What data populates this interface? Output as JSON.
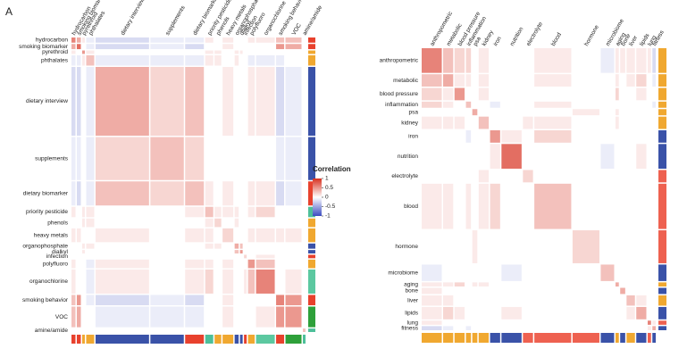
{
  "panel_label": "A",
  "color_scale": {
    "title": "Correlation",
    "lim": [
      -1,
      1
    ],
    "ticks": [
      1,
      0.5,
      0,
      -0.5,
      -1
    ],
    "low": "#3b4cc0",
    "mid": "#ffffff",
    "high": "#d7301f"
  },
  "chart_data": [
    {
      "type": "heatmap",
      "groups": [
        "hydrocarbon",
        "smoking biomarker",
        "pyrethroid",
        "phthalates",
        "dietary interview",
        "supplements",
        "dietary biomarker",
        "priority pesticide",
        "phenols",
        "heavy metals",
        "organophosphate",
        "dialkyl",
        "infection",
        "polyfluoro",
        "organochlorine",
        "smoking behavior",
        "VOC",
        "amine/amide"
      ],
      "sizes": [
        3,
        3,
        2,
        6,
        40,
        25,
        14,
        6,
        5,
        8,
        3,
        2,
        2,
        5,
        14,
        6,
        12,
        2
      ],
      "group_colors": [
        "#e8412d",
        "#e8412d",
        "#f0a830",
        "#f0a830",
        "#3a52a8",
        "#3a52a8",
        "#e8412d",
        "#4dbf9a",
        "#f0a830",
        "#f0a830",
        "#3a52a8",
        "#3a52a8",
        "#e8412d",
        "#f0a830",
        "#5cc8a0",
        "#e8412d",
        "#2ea03a",
        "#4dbf9a"
      ],
      "matrix": [
        [
          0.6,
          0.4,
          0.1,
          -0.1,
          -0.2,
          -0.1,
          -0.1,
          0.1,
          0,
          0.1,
          0,
          0,
          0,
          0.1,
          0.1,
          0.3,
          0.3,
          0
        ],
        [
          0.4,
          0.7,
          0,
          -0.1,
          -0.2,
          -0.1,
          -0.2,
          0,
          0,
          0.1,
          0,
          0,
          0,
          0,
          0,
          0.5,
          0.4,
          0
        ],
        [
          0.1,
          0,
          0.5,
          0.1,
          0,
          0,
          0,
          0.1,
          0.1,
          0,
          0.1,
          0.1,
          0,
          0,
          0,
          0,
          0,
          0
        ],
        [
          -0.1,
          -0.1,
          0.1,
          0.3,
          -0.1,
          -0.1,
          -0.1,
          0.1,
          0.1,
          0,
          0.1,
          0,
          0,
          -0.1,
          -0.1,
          -0.1,
          0,
          0
        ],
        [
          -0.2,
          -0.2,
          0,
          -0.1,
          0.4,
          0.2,
          0.3,
          0,
          0,
          0.1,
          0,
          0,
          0,
          0.1,
          0.1,
          -0.2,
          -0.1,
          0
        ],
        [
          -0.1,
          -0.1,
          0,
          -0.1,
          0.2,
          0.3,
          0.2,
          0,
          0,
          0,
          0,
          0,
          0,
          0,
          0,
          -0.1,
          -0.1,
          0
        ],
        [
          -0.1,
          -0.2,
          0,
          -0.1,
          0.3,
          0.2,
          0.3,
          0.1,
          0,
          0.1,
          0,
          0,
          0,
          0.1,
          0.1,
          -0.2,
          -0.1,
          0
        ],
        [
          0.1,
          0,
          0.1,
          0.1,
          0,
          0,
          0.1,
          0.3,
          0.1,
          0.1,
          0.1,
          0,
          0,
          0.1,
          0.2,
          0,
          0,
          0
        ],
        [
          0,
          0,
          0.1,
          0.1,
          0,
          0,
          0,
          0.1,
          0.2,
          0,
          0.1,
          0,
          0,
          0,
          0,
          0,
          0,
          0
        ],
        [
          0.1,
          0.1,
          0,
          0,
          0.1,
          0,
          0.1,
          0.1,
          0,
          0.2,
          0,
          0,
          0,
          0.1,
          0.1,
          0.1,
          0.1,
          0
        ],
        [
          0,
          0,
          0.1,
          0.1,
          0,
          0,
          0,
          0.1,
          0.1,
          0,
          0.4,
          0.3,
          0,
          0,
          0,
          0,
          0,
          0
        ],
        [
          0,
          0,
          0.1,
          0,
          0,
          0,
          0,
          0,
          0,
          0,
          0.3,
          0.5,
          0,
          0,
          0,
          0,
          0,
          0
        ],
        [
          0,
          0,
          0,
          0,
          0,
          0,
          0,
          0,
          0,
          0,
          0,
          0,
          0.2,
          0,
          0.1,
          0,
          0,
          0
        ],
        [
          0.1,
          0,
          0,
          -0.1,
          0.1,
          0,
          0.1,
          0.1,
          0,
          0.1,
          0,
          0,
          0,
          0.5,
          0.3,
          0,
          0,
          0
        ],
        [
          0.1,
          0,
          0,
          -0.1,
          0.1,
          0,
          0.1,
          0.2,
          0,
          0.1,
          0,
          0,
          0.1,
          0.3,
          0.6,
          0,
          0.1,
          0
        ],
        [
          0.3,
          0.5,
          0,
          -0.1,
          -0.2,
          -0.1,
          -0.2,
          0,
          0,
          0.1,
          0,
          0,
          0,
          0,
          0,
          0.6,
          0.5,
          0
        ],
        [
          0.3,
          0.4,
          0,
          0,
          -0.1,
          -0.1,
          -0.1,
          0,
          0,
          0.1,
          0,
          0,
          0,
          0,
          0.1,
          0.5,
          0.5,
          0
        ],
        [
          0,
          0,
          0,
          0,
          0,
          0,
          0,
          0,
          0,
          0,
          0,
          0,
          0,
          0,
          0,
          0,
          0,
          0.3
        ]
      ]
    },
    {
      "type": "heatmap",
      "groups": [
        "anthropometric",
        "metabolic",
        "blood pressure",
        "inflammation",
        "psa",
        "kidney",
        "iron",
        "nutrition",
        "electrolyte",
        "blood",
        "hormone",
        "microbiome",
        "aging",
        "bone",
        "liver",
        "lipids",
        "lung",
        "fitness"
      ],
      "sizes": [
        12,
        6,
        6,
        3,
        3,
        6,
        6,
        12,
        6,
        22,
        16,
        8,
        2,
        3,
        5,
        6,
        2,
        2
      ],
      "group_colors": [
        "#f0a830",
        "#f0a830",
        "#f0a830",
        "#f0a830",
        "#f0a830",
        "#f0a830",
        "#3a52a8",
        "#3a52a8",
        "#ee6150",
        "#ee6150",
        "#ee6150",
        "#3a52a8",
        "#f0a830",
        "#3a52a8",
        "#f0a830",
        "#3a52a8",
        "#ee6150",
        "#3a52a8"
      ],
      "matrix": [
        [
          0.6,
          0.3,
          0.2,
          0.2,
          0,
          0.1,
          0,
          0,
          0,
          0.1,
          0,
          -0.1,
          0.1,
          0.1,
          0.1,
          0.1,
          0.1,
          -0.2
        ],
        [
          0.3,
          0.4,
          0.1,
          0.1,
          0,
          0.1,
          0,
          0,
          0,
          0.1,
          0,
          0,
          0.1,
          0,
          0.1,
          0.2,
          0,
          -0.1
        ],
        [
          0.2,
          0.1,
          0.5,
          0,
          0,
          0.1,
          0,
          0,
          0,
          0,
          0,
          0,
          0.2,
          0,
          0,
          0.1,
          0,
          0
        ],
        [
          0.2,
          0.1,
          0,
          0.3,
          0,
          0,
          -0.1,
          0,
          0,
          0.1,
          0,
          0,
          0,
          0,
          0,
          0,
          0,
          -0.1
        ],
        [
          0,
          0,
          0,
          0,
          0.4,
          0,
          0,
          0,
          0,
          0,
          0.1,
          0,
          0.1,
          0,
          0,
          0,
          0,
          0
        ],
        [
          0.1,
          0.1,
          0.1,
          0,
          0,
          0.3,
          0,
          0,
          0.1,
          0.1,
          0,
          0,
          0.1,
          0,
          0,
          0,
          0,
          0
        ],
        [
          0,
          0,
          0,
          -0.1,
          0,
          0,
          0.5,
          0.1,
          0,
          0.2,
          0,
          0,
          0,
          0,
          0,
          0,
          0,
          0
        ],
        [
          0,
          0,
          0,
          0,
          0,
          0,
          0.1,
          0.7,
          0,
          0,
          0,
          -0.1,
          0,
          0,
          0,
          0.1,
          0,
          0
        ],
        [
          0,
          0,
          0,
          0,
          0,
          0.1,
          0,
          0,
          0.2,
          0,
          0,
          0,
          0,
          0,
          0,
          0,
          0,
          0
        ],
        [
          0.1,
          0.1,
          0,
          0.1,
          0,
          0.1,
          0.2,
          0,
          0,
          0.3,
          0,
          0,
          0,
          0,
          0,
          0,
          0,
          0
        ],
        [
          0,
          0,
          0,
          0,
          0.1,
          0,
          0,
          0,
          0,
          0,
          0.2,
          0,
          0,
          0,
          0,
          0,
          0,
          0
        ],
        [
          -0.1,
          0,
          0,
          0,
          0,
          0,
          0,
          -0.1,
          0,
          0,
          0,
          0.3,
          0,
          0,
          0,
          0,
          0,
          0
        ],
        [
          0.1,
          0.1,
          0.2,
          0,
          0.1,
          0.1,
          0,
          0,
          0,
          0,
          0,
          0,
          0.4,
          0,
          0,
          0,
          0,
          0
        ],
        [
          0.1,
          0,
          0,
          0,
          0,
          0,
          0,
          0,
          0,
          0,
          0,
          0,
          0,
          0.4,
          0,
          0,
          0,
          0
        ],
        [
          0.1,
          0.1,
          0,
          0,
          0,
          0,
          0,
          0,
          0,
          0,
          0,
          0,
          0,
          0,
          0.3,
          0.1,
          0,
          0
        ],
        [
          0.1,
          0.2,
          0.1,
          0,
          0,
          0,
          0,
          0.1,
          0,
          0,
          0,
          0,
          0,
          0,
          0.1,
          0.4,
          0,
          0
        ],
        [
          0.1,
          0,
          0,
          0,
          0,
          0,
          0,
          0,
          0,
          0,
          0,
          0,
          0,
          0,
          0,
          0,
          0.6,
          0.1
        ],
        [
          -0.2,
          -0.1,
          0,
          -0.1,
          0,
          0,
          0,
          0,
          0,
          0,
          0,
          0,
          0,
          0,
          0,
          0,
          0.1,
          0.4
        ]
      ]
    }
  ]
}
